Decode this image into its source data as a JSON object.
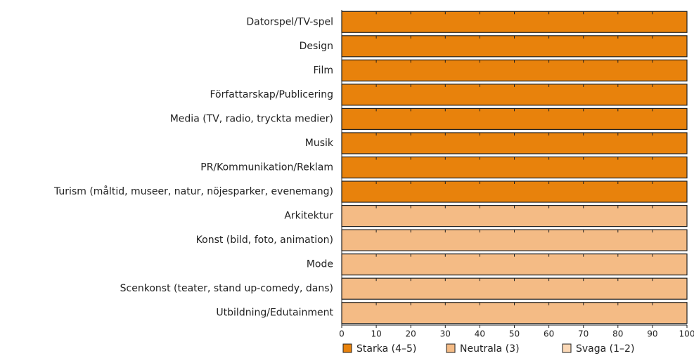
{
  "chart_data": {
    "type": "bar",
    "orientation": "horizontal",
    "stacked": true,
    "categories": [
      "Datorspel/TV-spel",
      "Design",
      "Film",
      "Författarskap/Publicering",
      "Media (TV, radio, tryckta medier)",
      "Musik",
      "PR/Kommunikation/Reklam",
      "Turism (måltid, museer, natur, nöjesparker, evenemang)",
      "Arkitektur",
      "Konst (bild, foto, animation)",
      "Mode",
      "Scenkonst (teater, stand up-comedy, dans)",
      "Utbildning/Edutainment"
    ],
    "series": [
      {
        "name": "Starka (4–5)",
        "color": "#e8820c",
        "values": [
          100,
          100,
          100,
          100,
          100,
          100,
          100,
          100,
          0,
          0,
          0,
          0,
          0
        ]
      },
      {
        "name": "Neutrala (3)",
        "color": "#f4bb85",
        "values": [
          0,
          0,
          0,
          0,
          0,
          0,
          0,
          0,
          100,
          100,
          100,
          100,
          100
        ]
      },
      {
        "name": "Svaga (1–2)",
        "color": "#fbd8b6",
        "values": [
          0,
          0,
          0,
          0,
          0,
          0,
          0,
          0,
          0,
          0,
          0,
          0,
          0
        ]
      }
    ],
    "xlim": [
      0,
      100
    ],
    "xticks": [
      0,
      10,
      20,
      30,
      40,
      50,
      60,
      70,
      80,
      90,
      100
    ],
    "legend": "bottom"
  }
}
